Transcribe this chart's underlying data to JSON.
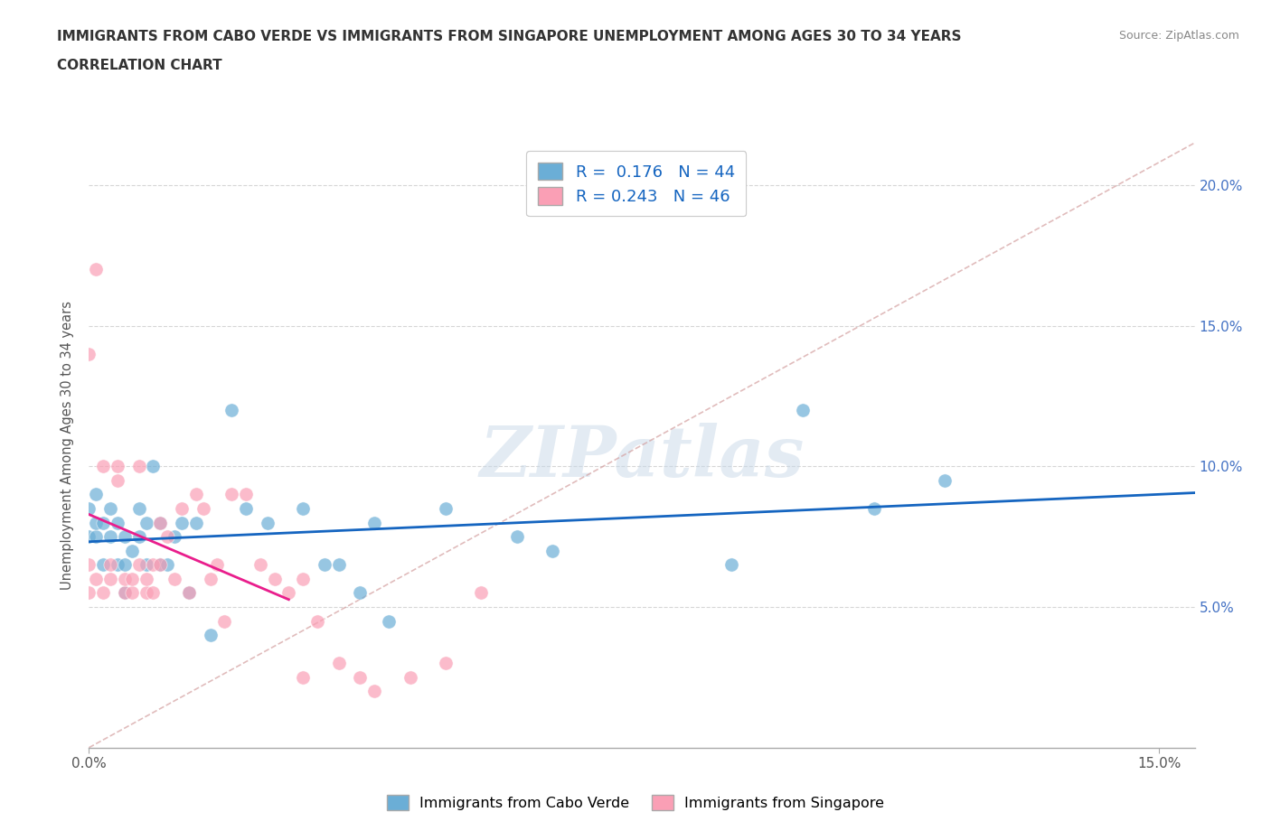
{
  "title_line1": "IMMIGRANTS FROM CABO VERDE VS IMMIGRANTS FROM SINGAPORE UNEMPLOYMENT AMONG AGES 30 TO 34 YEARS",
  "title_line2": "CORRELATION CHART",
  "source": "Source: ZipAtlas.com",
  "ylabel": "Unemployment Among Ages 30 to 34 years",
  "xlim": [
    0.0,
    0.155
  ],
  "ylim": [
    0.0,
    0.215
  ],
  "x_ticks": [
    0.0,
    0.15
  ],
  "x_tick_labels": [
    "0.0%",
    "15.0%"
  ],
  "y_ticks": [
    0.05,
    0.1,
    0.15,
    0.2
  ],
  "y_tick_labels": [
    "5.0%",
    "10.0%",
    "15.0%",
    "20.0%"
  ],
  "cabo_verde_color": "#6baed6",
  "singapore_color": "#fa9fb5",
  "cabo_verde_line_color": "#1565C0",
  "singapore_line_color": "#e91e8c",
  "cabo_verde_R": 0.176,
  "cabo_verde_N": 44,
  "singapore_R": 0.243,
  "singapore_N": 46,
  "watermark": "ZIPatlas",
  "cabo_verde_x": [
    0.0,
    0.0,
    0.001,
    0.001,
    0.001,
    0.002,
    0.002,
    0.003,
    0.003,
    0.004,
    0.004,
    0.005,
    0.005,
    0.005,
    0.006,
    0.007,
    0.007,
    0.008,
    0.008,
    0.009,
    0.01,
    0.01,
    0.011,
    0.012,
    0.013,
    0.014,
    0.015,
    0.017,
    0.02,
    0.022,
    0.025,
    0.03,
    0.033,
    0.035,
    0.038,
    0.04,
    0.042,
    0.05,
    0.06,
    0.065,
    0.09,
    0.1,
    0.11,
    0.12
  ],
  "cabo_verde_y": [
    0.075,
    0.085,
    0.075,
    0.08,
    0.09,
    0.065,
    0.08,
    0.075,
    0.085,
    0.065,
    0.08,
    0.055,
    0.065,
    0.075,
    0.07,
    0.075,
    0.085,
    0.065,
    0.08,
    0.1,
    0.065,
    0.08,
    0.065,
    0.075,
    0.08,
    0.055,
    0.08,
    0.04,
    0.12,
    0.085,
    0.08,
    0.085,
    0.065,
    0.065,
    0.055,
    0.08,
    0.045,
    0.085,
    0.075,
    0.07,
    0.065,
    0.12,
    0.085,
    0.095
  ],
  "singapore_x": [
    0.0,
    0.0,
    0.0,
    0.001,
    0.001,
    0.002,
    0.002,
    0.003,
    0.003,
    0.004,
    0.004,
    0.005,
    0.005,
    0.006,
    0.006,
    0.007,
    0.007,
    0.008,
    0.008,
    0.009,
    0.009,
    0.01,
    0.01,
    0.011,
    0.012,
    0.013,
    0.014,
    0.015,
    0.016,
    0.017,
    0.018,
    0.019,
    0.02,
    0.022,
    0.024,
    0.026,
    0.028,
    0.03,
    0.03,
    0.032,
    0.035,
    0.038,
    0.04,
    0.045,
    0.05,
    0.055
  ],
  "singapore_y": [
    0.055,
    0.065,
    0.14,
    0.06,
    0.17,
    0.055,
    0.1,
    0.06,
    0.065,
    0.095,
    0.1,
    0.055,
    0.06,
    0.055,
    0.06,
    0.065,
    0.1,
    0.055,
    0.06,
    0.055,
    0.065,
    0.065,
    0.08,
    0.075,
    0.06,
    0.085,
    0.055,
    0.09,
    0.085,
    0.06,
    0.065,
    0.045,
    0.09,
    0.09,
    0.065,
    0.06,
    0.055,
    0.025,
    0.06,
    0.045,
    0.03,
    0.025,
    0.02,
    0.025,
    0.03,
    0.055
  ]
}
